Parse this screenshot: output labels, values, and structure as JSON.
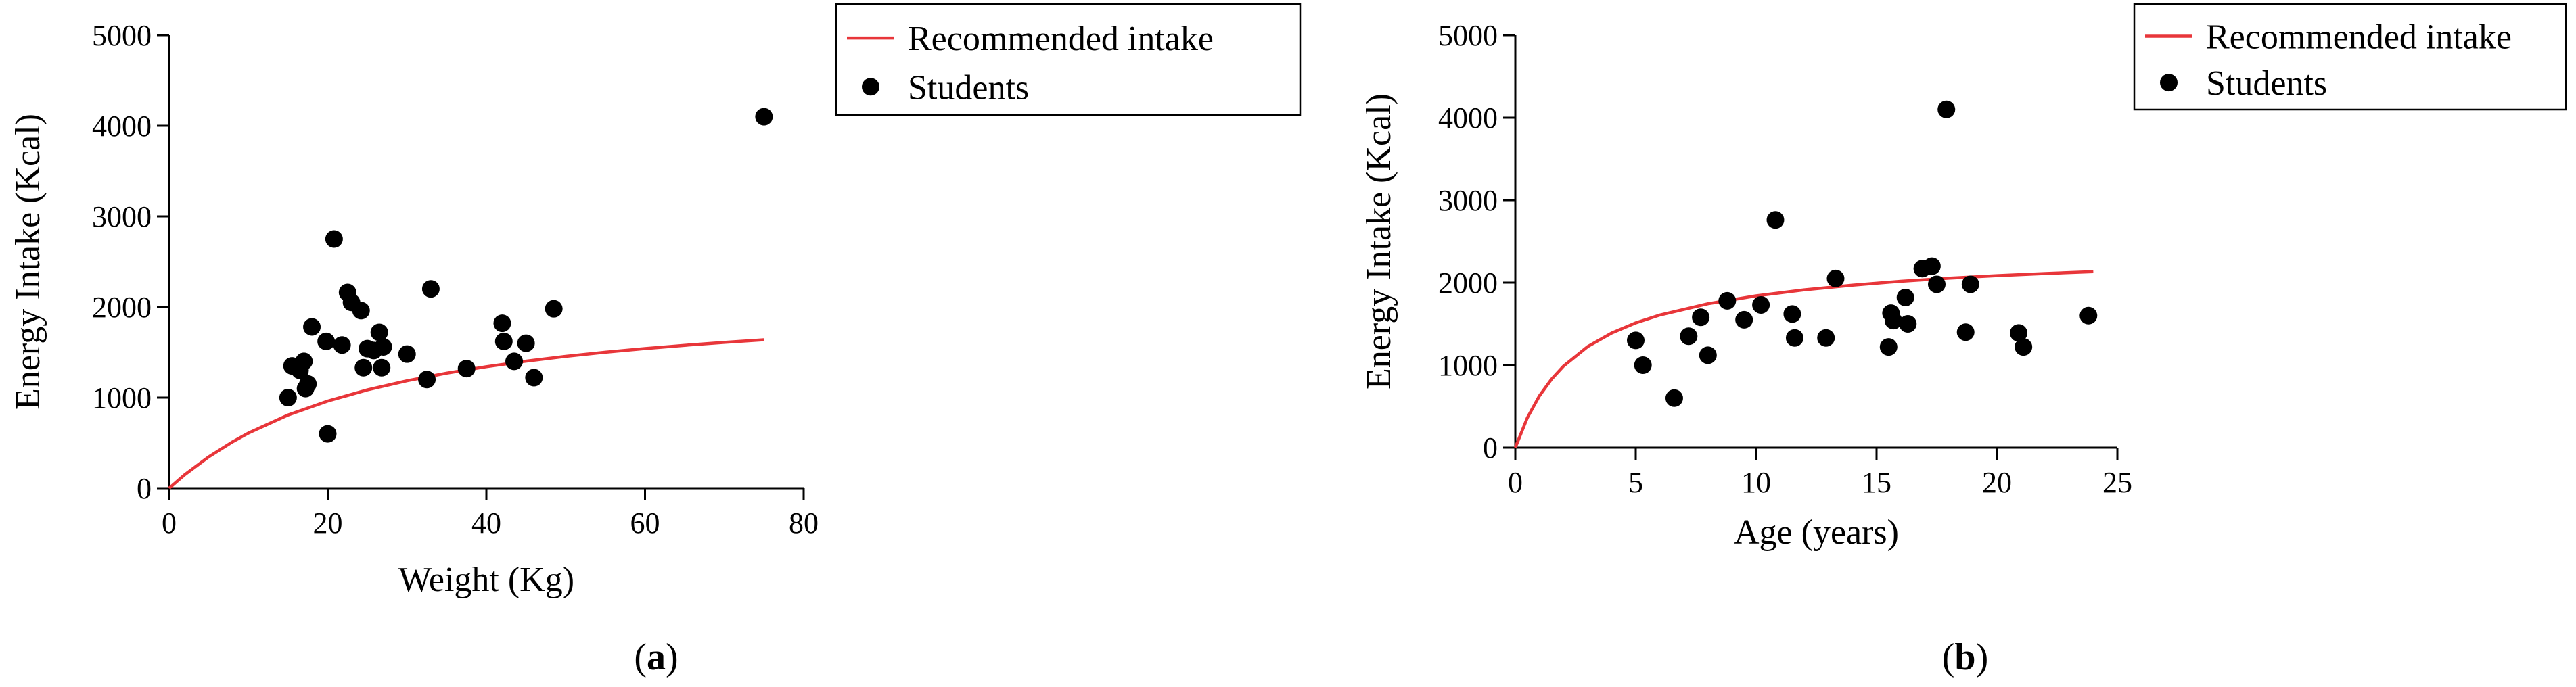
{
  "colors": {
    "recommended": "#e8363a",
    "students": "#000000"
  },
  "chart_data": [
    {
      "type": "scatter",
      "panel_label": "a",
      "xlabel": "Weight (Kg)",
      "ylabel": "Energy Intake (Kcal)",
      "xlim": [
        0,
        80
      ],
      "ylim": [
        0,
        5000
      ],
      "xticks": [
        "0",
        "20",
        "40",
        "60",
        "80"
      ],
      "yticks": [
        "0",
        "1000",
        "2000",
        "3000",
        "4000",
        "5000"
      ],
      "legend": {
        "position": "top-right",
        "entries": [
          "Recommended intake",
          "Students"
        ]
      },
      "series": [
        {
          "name": "Recommended intake",
          "type": "line",
          "x": [
            0,
            2,
            5,
            8,
            10,
            15,
            20,
            25,
            30,
            35,
            40,
            45,
            50,
            55,
            60,
            65,
            70,
            75
          ],
          "y": [
            0,
            151,
            346,
            512,
            609,
            808,
            962,
            1085,
            1186,
            1270,
            1341,
            1402,
            1455,
            1501,
            1541,
            1577,
            1609,
            1638
          ]
        },
        {
          "name": "Students",
          "type": "scatter",
          "x": [
            15,
            15.5,
            16.5,
            17,
            17.2,
            17.5,
            18,
            19.8,
            20,
            20.8,
            21.8,
            22.5,
            23,
            24.2,
            24.5,
            25,
            25.8,
            26.5,
            26.8,
            27,
            30,
            32.5,
            33,
            37.5,
            42,
            42.2,
            43.5,
            45,
            46,
            48.5,
            75
          ],
          "y": [
            1000,
            1350,
            1300,
            1400,
            1100,
            1150,
            1780,
            1620,
            600,
            2750,
            1580,
            2160,
            2050,
            1960,
            1330,
            1540,
            1520,
            1720,
            1330,
            1560,
            1480,
            1200,
            2200,
            1320,
            1820,
            1620,
            1400,
            1600,
            1220,
            1980,
            4100
          ]
        }
      ]
    },
    {
      "type": "scatter",
      "panel_label": "b",
      "xlabel": "Age (years)",
      "ylabel": "Energy Intake (Kcal)",
      "xlim": [
        0,
        25
      ],
      "ylim": [
        0,
        5000
      ],
      "xticks": [
        "0",
        "5",
        "10",
        "15",
        "20",
        "25"
      ],
      "yticks": [
        "0",
        "1000",
        "2000",
        "3000",
        "4000",
        "5000"
      ],
      "legend": {
        "position": "top-right",
        "entries": [
          "Recommended intake",
          "Students"
        ]
      },
      "series": [
        {
          "name": "Recommended intake",
          "type": "line",
          "x": [
            0,
            0.5,
            1,
            1.5,
            2,
            3,
            4,
            5,
            6,
            8,
            10,
            12,
            14,
            16,
            18,
            20,
            22,
            24
          ],
          "y": [
            0,
            362,
            627,
            829,
            988,
            1224,
            1389,
            1512,
            1607,
            1744,
            1840,
            1913,
            1970,
            2016,
            2054,
            2085,
            2111,
            2134
          ]
        },
        {
          "name": "Students",
          "type": "scatter",
          "x": [
            5,
            5.3,
            6.6,
            7.2,
            7.7,
            8,
            8.8,
            9.5,
            10.2,
            10.8,
            11.5,
            11.6,
            12.9,
            13.3,
            15.5,
            15.6,
            15.7,
            16.2,
            16.3,
            16.9,
            17.3,
            17.5,
            17.9,
            18.7,
            18.9,
            20.9,
            21.1,
            23.8
          ],
          "y": [
            1300,
            1000,
            600,
            1350,
            1580,
            1120,
            1780,
            1550,
            1730,
            2760,
            1620,
            1330,
            1330,
            2050,
            1220,
            1630,
            1540,
            1820,
            1500,
            2170,
            2200,
            1980,
            4100,
            1400,
            1980,
            1390,
            1220,
            1600
          ]
        }
      ]
    }
  ]
}
